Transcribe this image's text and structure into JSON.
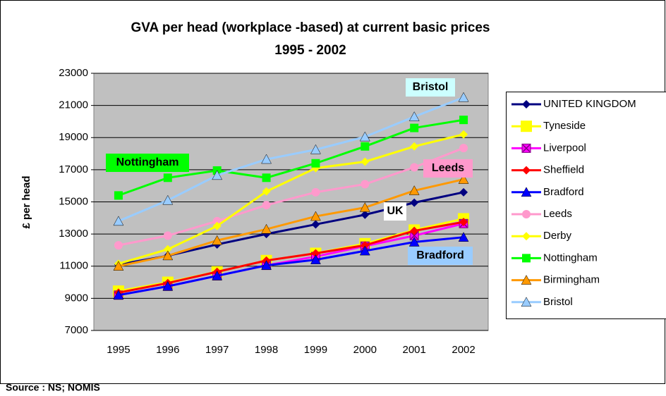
{
  "chart_data": {
    "type": "line",
    "title": "GVA per head (workplace -based) at current basic prices",
    "subtitle": "1995 - 2002",
    "y_label": "£ per head",
    "source": "Source : NS; NOMIS",
    "categories": [
      "1995",
      "1996",
      "1997",
      "1998",
      "1999",
      "2000",
      "2001",
      "2002"
    ],
    "ylim": [
      7000,
      23000
    ],
    "yticks": [
      7000,
      9000,
      11000,
      13000,
      15000,
      17000,
      19000,
      21000,
      23000
    ],
    "grid": true,
    "legend": "right",
    "series": [
      {
        "name": "UNITED KINGDOM",
        "color": "#000080",
        "marker": "diamond",
        "values": [
          11100,
          11650,
          12350,
          13000,
          13600,
          14200,
          14950,
          15600
        ]
      },
      {
        "name": "Tyneside",
        "color": "#ffff00",
        "marker": "square-big",
        "values": [
          9450,
          10000,
          10650,
          11350,
          11800,
          12400,
          13250,
          13950
        ]
      },
      {
        "name": "Liverpool",
        "color": "#ff00ff",
        "marker": "square-x",
        "values": [
          9200,
          9750,
          10400,
          11050,
          11600,
          12250,
          12900,
          13650
        ]
      },
      {
        "name": "Sheffield",
        "color": "#ff0000",
        "marker": "diamond",
        "values": [
          9350,
          9950,
          10650,
          11350,
          11800,
          12300,
          13200,
          13750
        ]
      },
      {
        "name": "Bradford",
        "color": "#0000ff",
        "marker": "triangle",
        "values": [
          9200,
          9750,
          10400,
          11050,
          11400,
          11950,
          12500,
          12800
        ]
      },
      {
        "name": "Leeds",
        "color": "#ff99cc",
        "marker": "circle",
        "values": [
          12300,
          12900,
          13800,
          14800,
          15600,
          16100,
          17150,
          18350
        ]
      },
      {
        "name": "Derby",
        "color": "#ffff00",
        "marker": "diamond",
        "values": [
          11150,
          12050,
          13500,
          15650,
          17100,
          17500,
          18450,
          19200
        ]
      },
      {
        "name": "Nottingham",
        "color": "#00ff00",
        "marker": "square",
        "values": [
          15400,
          16500,
          16950,
          16500,
          17400,
          18450,
          19600,
          20100
        ]
      },
      {
        "name": "Birmingham",
        "color": "#ff9900",
        "marker": "triangle",
        "values": [
          11000,
          11650,
          12600,
          13300,
          14100,
          14650,
          15700,
          16400
        ]
      },
      {
        "name": "Bristol",
        "color": "#99ccff",
        "marker": "triangle",
        "values": [
          13800,
          15100,
          16650,
          17650,
          18250,
          19050,
          20300,
          21500
        ]
      }
    ],
    "annotations": [
      "Nottingham",
      "Bristol",
      "Leeds",
      "UK",
      "Bradford"
    ]
  }
}
